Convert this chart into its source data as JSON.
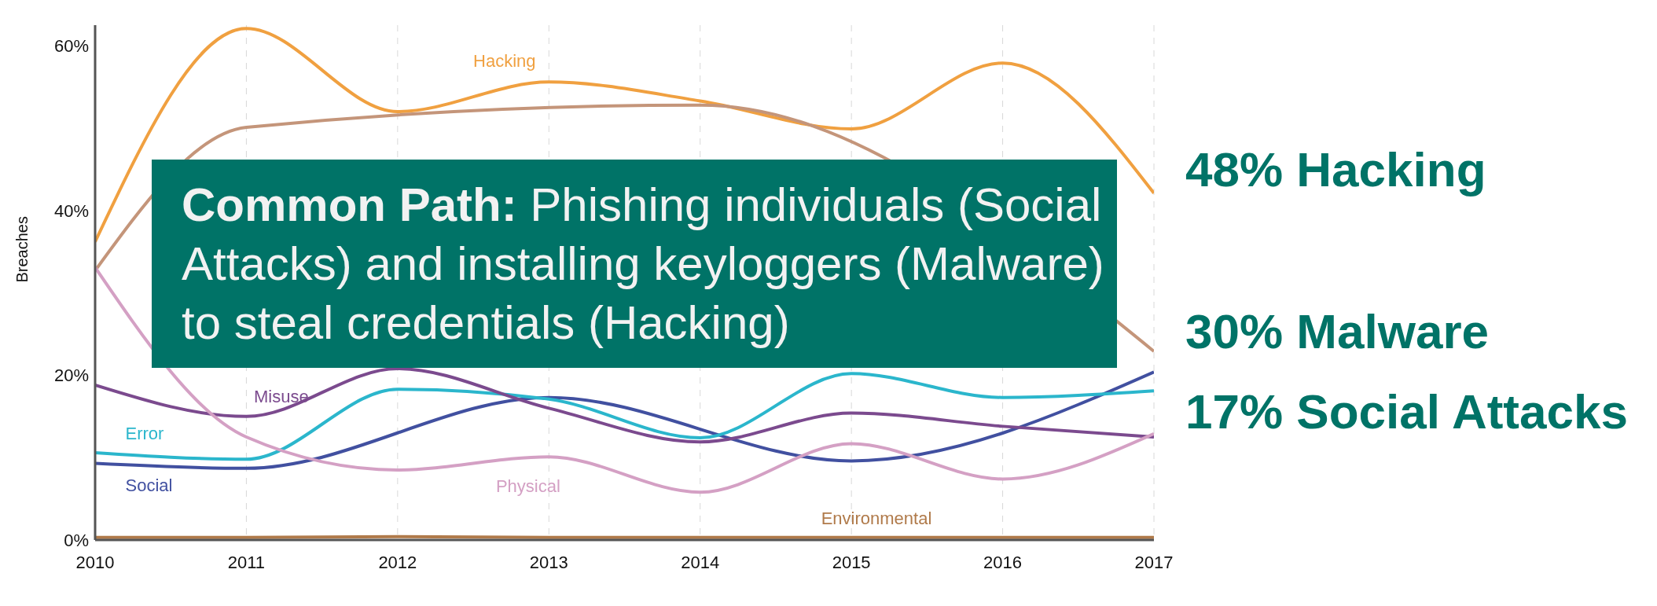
{
  "chart_data": {
    "type": "line",
    "ylabel": "Breaches",
    "x": [
      2010,
      2011,
      2012,
      2013,
      2014,
      2015,
      2016,
      2017
    ],
    "xlim": [
      2010,
      2017
    ],
    "xticks": [
      2010,
      2011,
      2012,
      2013,
      2014,
      2015,
      2016,
      2017
    ],
    "ylim": [
      0,
      62.5
    ],
    "yticks": [
      {
        "value": 0,
        "label": "0%"
      },
      {
        "value": 20,
        "label": "20%"
      },
      {
        "value": 40,
        "label": "40%"
      },
      {
        "value": 60,
        "label": "60%"
      }
    ],
    "grid": "x",
    "legend": false,
    "marker": "none",
    "line_style": "solid",
    "series": [
      {
        "name": "Hacking",
        "color": "#f0a040",
        "values": [
          36.2,
          62.1,
          52,
          55.6,
          53.3,
          49.9,
          57.9,
          42.1
        ]
      },
      {
        "color": "#c4957a",
        "values": [
          32.7,
          50.1,
          null,
          null,
          52.8,
          null,
          null,
          22.9
        ]
      },
      {
        "name": "Social",
        "color": "#4150a0",
        "values": [
          9.3,
          8.7,
          null,
          17.3,
          null,
          9.6,
          null,
          20.4
        ]
      },
      {
        "name": "Error",
        "color": "#2bb6cc",
        "values": [
          10.6,
          9.8,
          18.3,
          17.1,
          12.4,
          20.2,
          17.3,
          18.1
        ]
      },
      {
        "name": "Misuse",
        "color": "#7b4a8e",
        "values": [
          18.8,
          15,
          20.8,
          16,
          11.9,
          15.4,
          13.8,
          12.5
        ]
      },
      {
        "name": "Physical",
        "color": "#d4a0c4",
        "values": [
          33.1,
          12.5,
          8.5,
          10.1,
          5.8,
          11.7,
          7.4,
          12.9
        ]
      },
      {
        "name": "Environmental",
        "color": "#b07a4a",
        "values": [
          0.3,
          0.3,
          0.4,
          0.3,
          0.3,
          0.3,
          0.3,
          0.3
        ]
      }
    ],
    "annotations": [
      "Common Path: Phishing individuals (Social Attacks) and installing keyloggers (Malware) to steal credentials (Hacking)",
      "48% Hacking",
      "30% Malware",
      "17% Social Attacks"
    ]
  }
}
